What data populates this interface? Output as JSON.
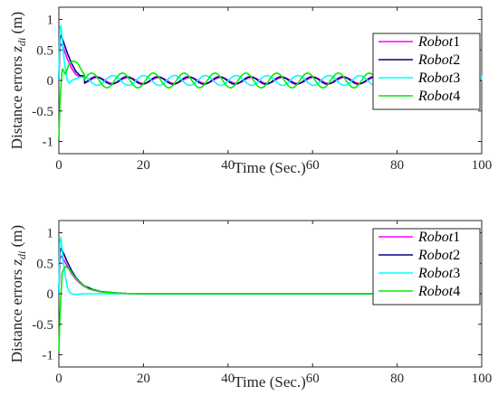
{
  "chart_data": [
    {
      "type": "line",
      "ylabel": "Distance errors z_di (m)",
      "ylabel_main": "Distance errors ",
      "ylabel_sym": "z",
      "ylabel_sub": "di",
      "ylabel_unit": " (m)",
      "xlabel": "Time (Sec.)",
      "xlim": [
        0,
        100
      ],
      "ylim": [
        -1.2,
        1.2
      ],
      "xticks": [
        "0",
        "20",
        "40",
        "60",
        "80",
        "100"
      ],
      "yticks": [
        "-1",
        "-0.5",
        "0",
        "0.5",
        "1"
      ],
      "grid": false,
      "legend_position": "top-right",
      "series": [
        {
          "name": "Robot1",
          "color": "#ff00ff",
          "values": {
            "x": [
              0,
              0.2,
              0.5,
              1,
              1.5,
              2,
              3,
              4,
              5,
              10,
              20,
              30,
              40,
              50,
              60,
              70,
              75,
              80,
              90,
              100
            ],
            "y": [
              0.0,
              0.55,
              0.6,
              0.55,
              0.45,
              0.35,
              0.2,
              0.1,
              0.06,
              0.05,
              0.05,
              0.05,
              0.05,
              0.05,
              0.05,
              0.05,
              0.05,
              0.0,
              0.0,
              0.0
            ]
          }
        },
        {
          "name": "Robot2",
          "color": "#00008b",
          "values": {
            "x": [
              0,
              0.2,
              0.5,
              1,
              2,
              3,
              4,
              5,
              10,
              20,
              40,
              60,
              75,
              80,
              100
            ],
            "y": [
              0.0,
              0.65,
              0.75,
              0.65,
              0.45,
              0.28,
              0.15,
              0.08,
              0.06,
              0.06,
              0.06,
              0.06,
              0.06,
              0.0,
              0.0
            ]
          }
        },
        {
          "name": "Robot3",
          "color": "#00ffff",
          "values": {
            "x": [
              0,
              0.2,
              0.5,
              1,
              1.5,
              2,
              2.5,
              3,
              5,
              10,
              40,
              70,
              75,
              80,
              98,
              100
            ],
            "y": [
              0.0,
              0.85,
              0.9,
              0.5,
              0.2,
              0.0,
              -0.05,
              0.0,
              0.05,
              0.08,
              0.08,
              0.1,
              0.1,
              0.0,
              0.1,
              0.1
            ]
          }
        },
        {
          "name": "Robot4",
          "color": "#00ee00",
          "values": {
            "x": [
              0,
              0.3,
              0.8,
              1.5,
              2.5,
              3.5,
              4.5,
              5.5,
              7,
              10,
              20,
              40,
              60,
              75,
              80,
              100
            ],
            "y": [
              -0.95,
              -0.3,
              0.2,
              0.1,
              0.28,
              0.32,
              0.28,
              0.15,
              0.0,
              0.12,
              0.12,
              0.12,
              0.1,
              0.1,
              0.0,
              0.0
            ]
          }
        }
      ]
    },
    {
      "type": "line",
      "ylabel": "Distance errors z_di (m)",
      "ylabel_main": "Distance errors ",
      "ylabel_sym": "z",
      "ylabel_sub": "di",
      "ylabel_unit": " (m)",
      "xlabel": "Time (Sec.)",
      "xlim": [
        0,
        100
      ],
      "ylim": [
        -1.2,
        1.2
      ],
      "xticks": [
        "0",
        "20",
        "40",
        "60",
        "80",
        "100"
      ],
      "yticks": [
        "-1",
        "-0.5",
        "0",
        "0.5",
        "1"
      ],
      "grid": false,
      "legend_position": "top-right",
      "series": [
        {
          "name": "Robot1",
          "color": "#ff00ff",
          "values": {
            "x": [
              0,
              0.2,
              0.5,
              1,
              2,
              3,
              4,
              5,
              6,
              8,
              10,
              15,
              20,
              100
            ],
            "y": [
              0.0,
              0.55,
              0.62,
              0.58,
              0.45,
              0.33,
              0.24,
              0.17,
              0.12,
              0.06,
              0.03,
              0.005,
              0.0,
              0.0
            ]
          }
        },
        {
          "name": "Robot2",
          "color": "#00008b",
          "values": {
            "x": [
              0,
              0.2,
              0.5,
              1,
              2,
              3,
              4,
              5,
              6,
              8,
              10,
              15,
              20,
              100
            ],
            "y": [
              0.0,
              0.65,
              0.75,
              0.68,
              0.52,
              0.38,
              0.27,
              0.19,
              0.13,
              0.07,
              0.035,
              0.005,
              0.0,
              0.0
            ]
          }
        },
        {
          "name": "Robot3",
          "color": "#00ffff",
          "values": {
            "x": [
              0,
              0.2,
              0.5,
              1,
              1.5,
              2,
              2.5,
              3,
              4,
              6,
              100
            ],
            "y": [
              0.0,
              0.85,
              0.92,
              0.55,
              0.3,
              0.12,
              0.03,
              0.0,
              -0.01,
              0.0,
              0.0
            ]
          }
        },
        {
          "name": "Robot4",
          "color": "#00ee00",
          "values": {
            "x": [
              0,
              0.3,
              0.8,
              1.5,
              2.5,
              3.5,
              5,
              7,
              10,
              15,
              20,
              100
            ],
            "y": [
              -0.95,
              -0.3,
              0.35,
              0.45,
              0.4,
              0.3,
              0.18,
              0.08,
              0.03,
              0.005,
              0.0,
              0.0
            ]
          }
        }
      ]
    }
  ],
  "oscillation": {
    "note_free": true,
    "period": 7.3,
    "amplitudes": [
      0.05,
      0.06,
      0.08,
      0.12
    ]
  }
}
